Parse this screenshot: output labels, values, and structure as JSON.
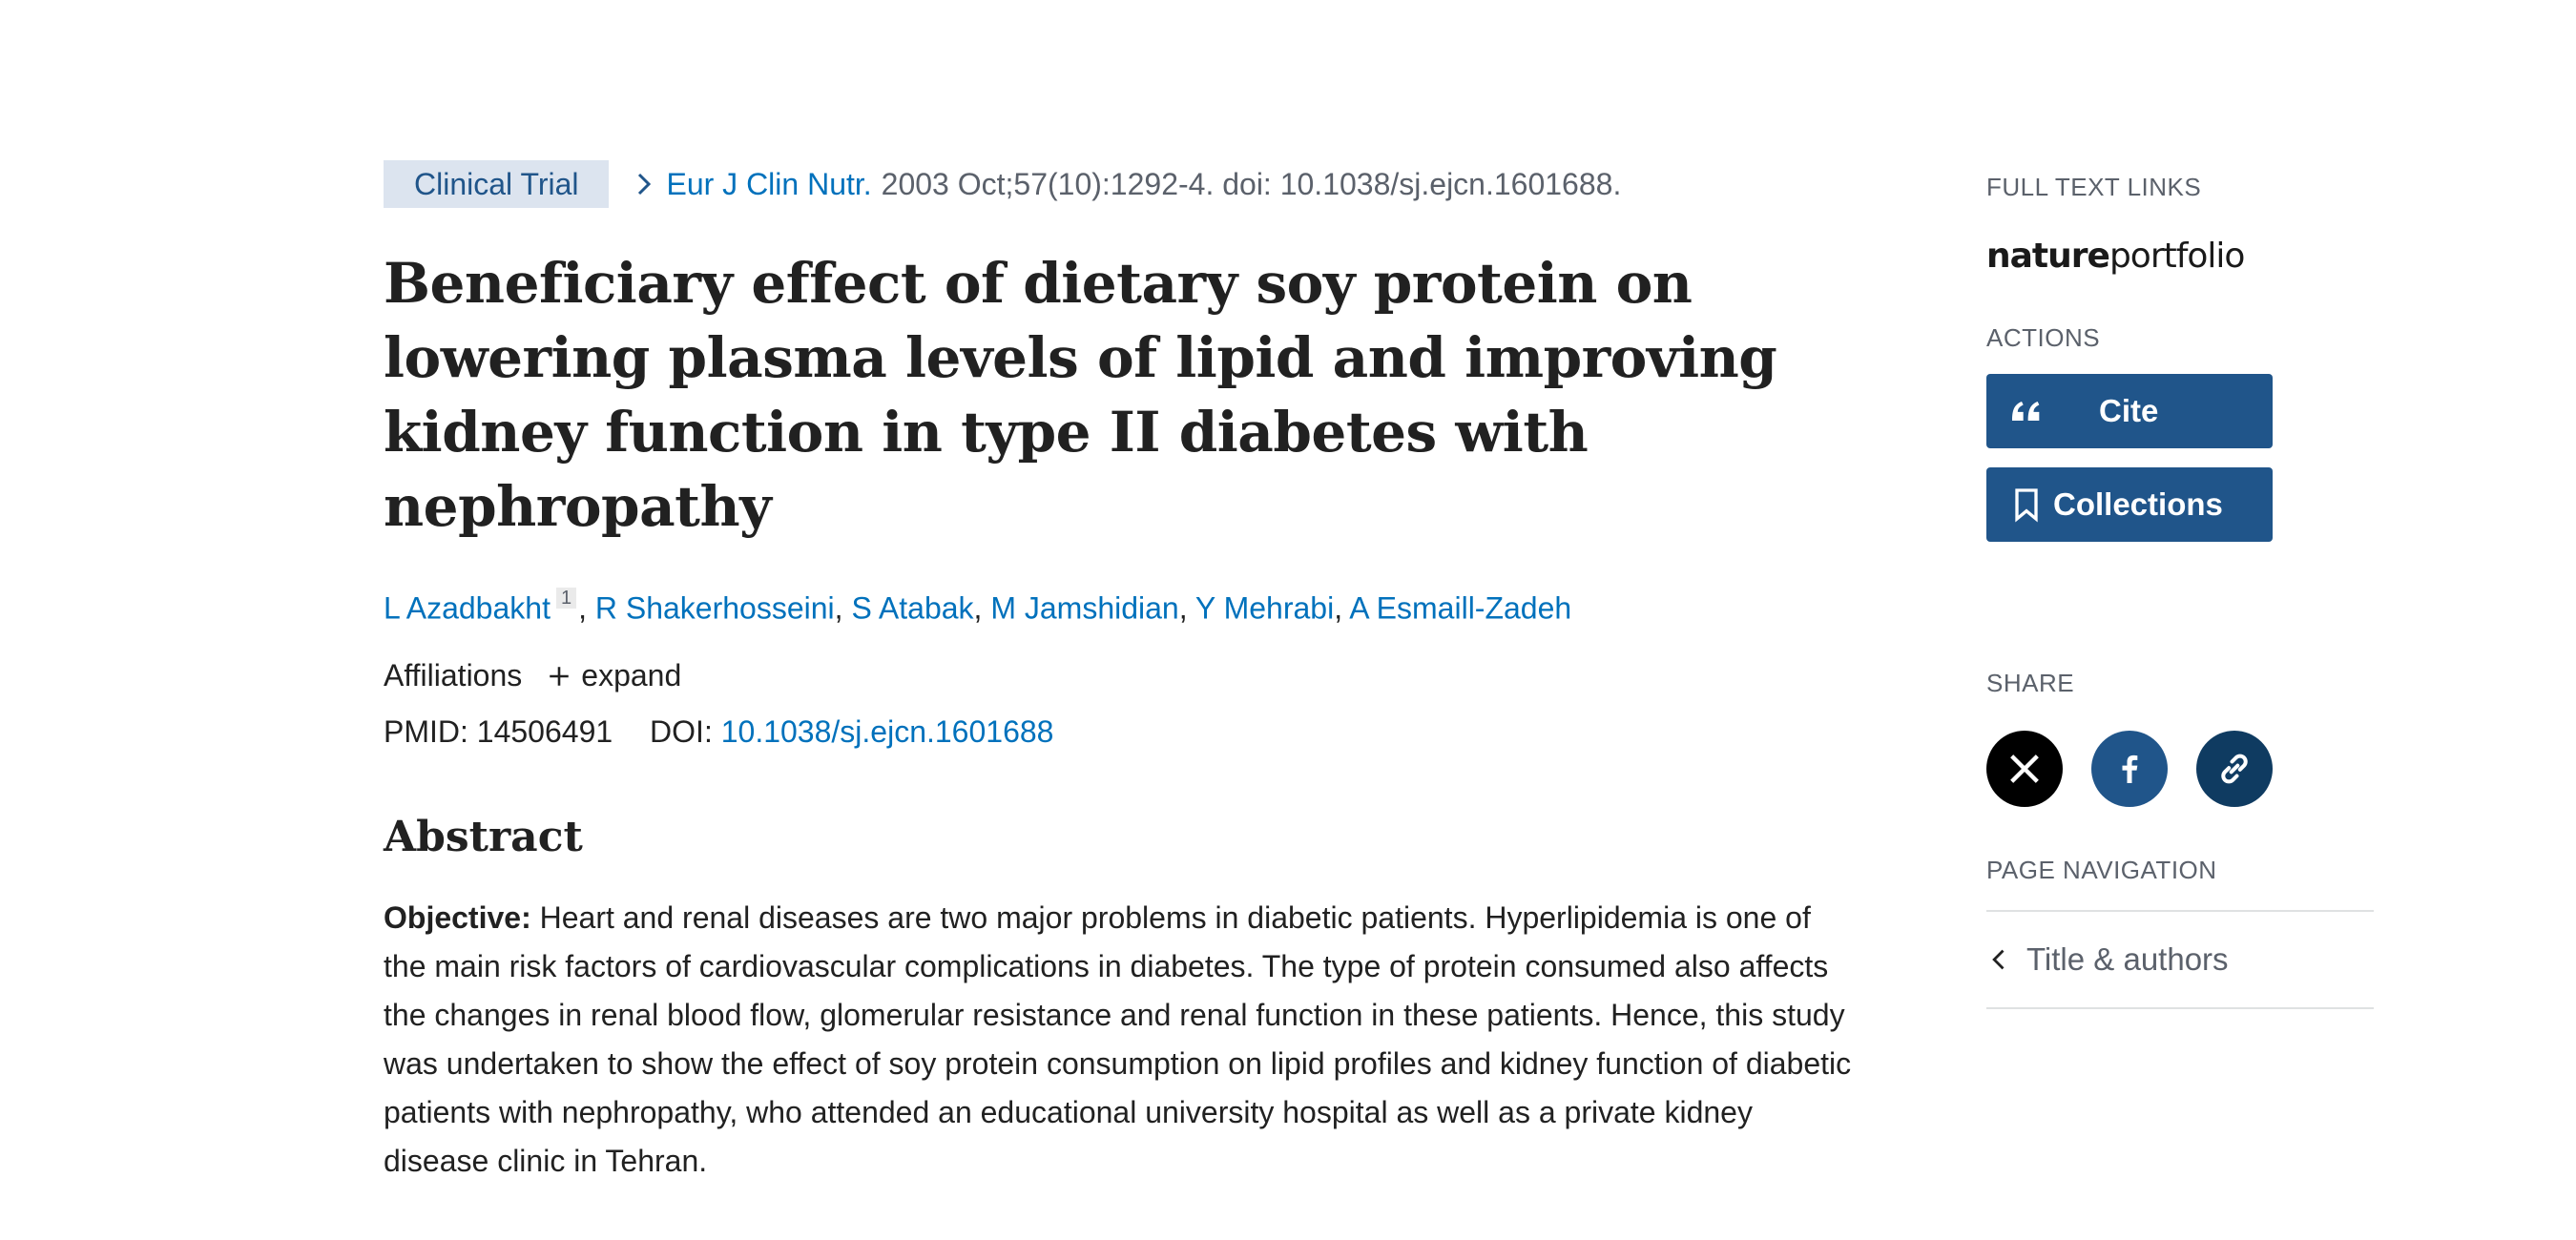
{
  "article": {
    "publication_type": "Clinical Trial",
    "journal": "Eur J Clin Nutr.",
    "citation": "2003 Oct;57(10):1292-4. doi: 10.1038/sj.ejcn.1601688.",
    "title": "Beneficiary effect of dietary soy protein on lowering plasma levels of lipid and improving kidney function in type II diabetes with nephropathy",
    "authors": [
      "L Azadbakht",
      "R Shakerhosseini",
      "S Atabak",
      "M Jamshidian",
      "Y Mehrabi",
      "A Esmaill-Zadeh"
    ],
    "first_author_affil_ref": "1",
    "affiliations_label": "Affiliations",
    "expand_label": "expand",
    "pmid_label": "PMID:",
    "pmid": "14506491",
    "doi_label": "DOI:",
    "doi": "10.1038/sj.ejcn.1601688"
  },
  "abstract": {
    "heading": "Abstract",
    "objective_label": "Objective:",
    "objective_text": "Heart and renal diseases are two major problems in diabetic patients. Hyperlipidemia is one of the main risk factors of cardiovascular complications in diabetes. The type of protein consumed also affects the changes in renal blood flow, glomerular resistance and renal function in these patients. Hence, this study was undertaken to show the effect of soy protein consumption on lipid profiles and kidney function of diabetic patients with nephropathy, who attended an educational university hospital as well as a private kidney disease clinic in Tehran."
  },
  "sidebar": {
    "full_text_heading": "FULL TEXT LINKS",
    "publisher_logo": {
      "part1": "nature",
      "part2": "portfolio"
    },
    "actions_heading": "ACTIONS",
    "cite_label": "Cite",
    "collections_label": "Collections",
    "share_heading": "SHARE",
    "share_icons": [
      "x-icon",
      "facebook-icon",
      "link-icon"
    ],
    "share_colors": {
      "x": "#000000",
      "facebook": "#20558a",
      "link": "#0f3b61"
    },
    "page_nav_heading": "PAGE NAVIGATION",
    "page_nav_item": "Title & authors"
  },
  "colors": {
    "link": "#0071bc",
    "button": "#20558a",
    "badge_bg": "#dce4ef"
  }
}
